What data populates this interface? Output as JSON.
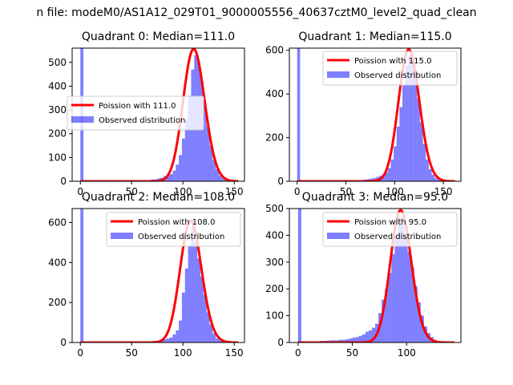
{
  "suptitle": "n file: modeM0/AS1A12_029T01_9000005556_40637cztM0_level2_quad_clean",
  "chart_data": [
    {
      "type": "bar",
      "title": "Quadrant 0: Median=111.0",
      "xlim": [
        -8,
        160
      ],
      "ylim": [
        0,
        560
      ],
      "xticks": [
        0,
        50,
        100,
        150
      ],
      "yticks": [
        0,
        100,
        200,
        300,
        400,
        500
      ],
      "legend_position": "center-left",
      "series": [
        {
          "name": "Poission with 111.0",
          "type": "line",
          "color": "#ff0000",
          "median": 111.0
        },
        {
          "name": "Observed distribution",
          "type": "bar",
          "color": "#0000ff",
          "alpha": 0.5,
          "bins": [
            [
              0,
              3,
              560
            ],
            [
              3,
              6,
              3
            ],
            [
              60,
              63,
              4
            ],
            [
              63,
              66,
              5
            ],
            [
              66,
              69,
              5
            ],
            [
              69,
              72,
              8
            ],
            [
              72,
              75,
              8
            ],
            [
              75,
              78,
              12
            ],
            [
              78,
              81,
              15
            ],
            [
              81,
              84,
              22
            ],
            [
              84,
              87,
              25
            ],
            [
              87,
              90,
              30
            ],
            [
              90,
              93,
              45
            ],
            [
              93,
              96,
              70
            ],
            [
              96,
              99,
              110
            ],
            [
              99,
              102,
              180
            ],
            [
              102,
              105,
              260
            ],
            [
              105,
              108,
              360
            ],
            [
              108,
              111,
              470
            ],
            [
              111,
              114,
              530
            ],
            [
              114,
              117,
              500
            ],
            [
              117,
              120,
              420
            ],
            [
              120,
              123,
              330
            ],
            [
              123,
              126,
              230
            ],
            [
              126,
              129,
              150
            ],
            [
              129,
              132,
              90
            ],
            [
              132,
              135,
              50
            ],
            [
              135,
              138,
              25
            ],
            [
              138,
              141,
              12
            ],
            [
              141,
              144,
              6
            ],
            [
              144,
              147,
              3
            ],
            [
              147,
              150,
              2
            ]
          ]
        }
      ]
    },
    {
      "type": "bar",
      "title": "Quadrant 1: Median=115.0",
      "xlim": [
        -8,
        168
      ],
      "ylim": [
        0,
        610
      ],
      "xticks": [
        0,
        50,
        100,
        150
      ],
      "yticks": [
        0,
        200,
        400,
        600
      ],
      "legend_position": "top-right",
      "series": [
        {
          "name": "Poission with 115.0",
          "type": "line",
          "color": "#ff0000",
          "median": 115.0
        },
        {
          "name": "Observed distribution",
          "type": "bar",
          "color": "#0000ff",
          "alpha": 0.5,
          "bins": [
            [
              0,
              3,
              610
            ],
            [
              3,
              6,
              3
            ],
            [
              60,
              63,
              4
            ],
            [
              63,
              66,
              5
            ],
            [
              66,
              69,
              6
            ],
            [
              69,
              72,
              8
            ],
            [
              72,
              75,
              10
            ],
            [
              75,
              78,
              12
            ],
            [
              78,
              81,
              15
            ],
            [
              81,
              84,
              20
            ],
            [
              84,
              87,
              25
            ],
            [
              87,
              90,
              30
            ],
            [
              90,
              93,
              40
            ],
            [
              93,
              96,
              60
            ],
            [
              96,
              99,
              100
            ],
            [
              99,
              102,
              160
            ],
            [
              102,
              105,
              250
            ],
            [
              105,
              108,
              340
            ],
            [
              108,
              111,
              440
            ],
            [
              111,
              114,
              530
            ],
            [
              114,
              117,
              575
            ],
            [
              117,
              120,
              560
            ],
            [
              120,
              123,
              480
            ],
            [
              123,
              126,
              380
            ],
            [
              126,
              129,
              270
            ],
            [
              129,
              132,
              170
            ],
            [
              132,
              135,
              100
            ],
            [
              135,
              138,
              55
            ],
            [
              138,
              141,
              30
            ],
            [
              141,
              144,
              15
            ],
            [
              144,
              147,
              8
            ],
            [
              147,
              150,
              4
            ],
            [
              150,
              153,
              2
            ]
          ]
        }
      ]
    },
    {
      "type": "bar",
      "title": "Quadrant 2: Median=108.0",
      "xlim": [
        -8,
        160
      ],
      "ylim": [
        0,
        670
      ],
      "xticks": [
        0,
        50,
        100,
        150
      ],
      "yticks": [
        0,
        200,
        400,
        600
      ],
      "legend_position": "top-right",
      "series": [
        {
          "name": "Poission with 108.0",
          "type": "line",
          "color": "#ff0000",
          "median": 108.0
        },
        {
          "name": "Observed distribution",
          "type": "bar",
          "color": "#0000ff",
          "alpha": 0.5,
          "bins": [
            [
              0,
              3,
              670
            ],
            [
              3,
              6,
              3
            ],
            [
              60,
              63,
              4
            ],
            [
              63,
              66,
              5
            ],
            [
              66,
              69,
              6
            ],
            [
              69,
              72,
              7
            ],
            [
              72,
              75,
              8
            ],
            [
              75,
              78,
              10
            ],
            [
              78,
              81,
              12
            ],
            [
              81,
              84,
              15
            ],
            [
              84,
              87,
              20
            ],
            [
              87,
              90,
              25
            ],
            [
              90,
              93,
              40
            ],
            [
              93,
              96,
              60
            ],
            [
              96,
              99,
              110
            ],
            [
              99,
              102,
              250
            ],
            [
              102,
              105,
              370
            ],
            [
              105,
              108,
              480
            ],
            [
              108,
              111,
              580
            ],
            [
              111,
              114,
              500
            ],
            [
              114,
              117,
              420
            ],
            [
              117,
              120,
              330
            ],
            [
              120,
              123,
              240
            ],
            [
              123,
              126,
              150
            ],
            [
              126,
              129,
              90
            ],
            [
              129,
              132,
              45
            ],
            [
              132,
              135,
              20
            ],
            [
              135,
              138,
              10
            ],
            [
              138,
              141,
              5
            ],
            [
              141,
              144,
              3
            ]
          ]
        }
      ]
    },
    {
      "type": "bar",
      "title": "Quadrant 3: Median=95.0",
      "xlim": [
        -8,
        150
      ],
      "ylim": [
        0,
        500
      ],
      "xticks": [
        0,
        50,
        100
      ],
      "yticks": [
        0,
        100,
        200,
        300,
        400,
        500
      ],
      "legend_position": "top-right",
      "series": [
        {
          "name": "Poission with 95.0",
          "type": "line",
          "color": "#ff0000",
          "median": 95.0
        },
        {
          "name": "Observed distribution",
          "type": "bar",
          "color": "#0000ff",
          "alpha": 0.5,
          "bins": [
            [
              0,
              3,
              500
            ],
            [
              3,
              6,
              4
            ],
            [
              20,
              23,
              6
            ],
            [
              23,
              26,
              6
            ],
            [
              26,
              29,
              7
            ],
            [
              29,
              32,
              8
            ],
            [
              32,
              35,
              8
            ],
            [
              35,
              38,
              8
            ],
            [
              38,
              41,
              10
            ],
            [
              41,
              44,
              10
            ],
            [
              44,
              47,
              12
            ],
            [
              47,
              50,
              15
            ],
            [
              50,
              53,
              18
            ],
            [
              53,
              56,
              20
            ],
            [
              56,
              59,
              25
            ],
            [
              59,
              62,
              30
            ],
            [
              62,
              65,
              40
            ],
            [
              65,
              68,
              45
            ],
            [
              68,
              71,
              55
            ],
            [
              71,
              74,
              70
            ],
            [
              74,
              77,
              110
            ],
            [
              77,
              80,
              160
            ],
            [
              80,
              83,
              200
            ],
            [
              83,
              86,
              260
            ],
            [
              86,
              89,
              330
            ],
            [
              89,
              92,
              400
            ],
            [
              92,
              95,
              470
            ],
            [
              95,
              98,
              440
            ],
            [
              98,
              101,
              400
            ],
            [
              101,
              104,
              340
            ],
            [
              104,
              107,
              280
            ],
            [
              107,
              110,
              210
            ],
            [
              110,
              113,
              150
            ],
            [
              113,
              116,
              100
            ],
            [
              116,
              119,
              60
            ],
            [
              119,
              122,
              35
            ],
            [
              122,
              125,
              20
            ],
            [
              125,
              128,
              10
            ],
            [
              128,
              131,
              5
            ],
            [
              131,
              134,
              3
            ]
          ]
        }
      ]
    }
  ]
}
